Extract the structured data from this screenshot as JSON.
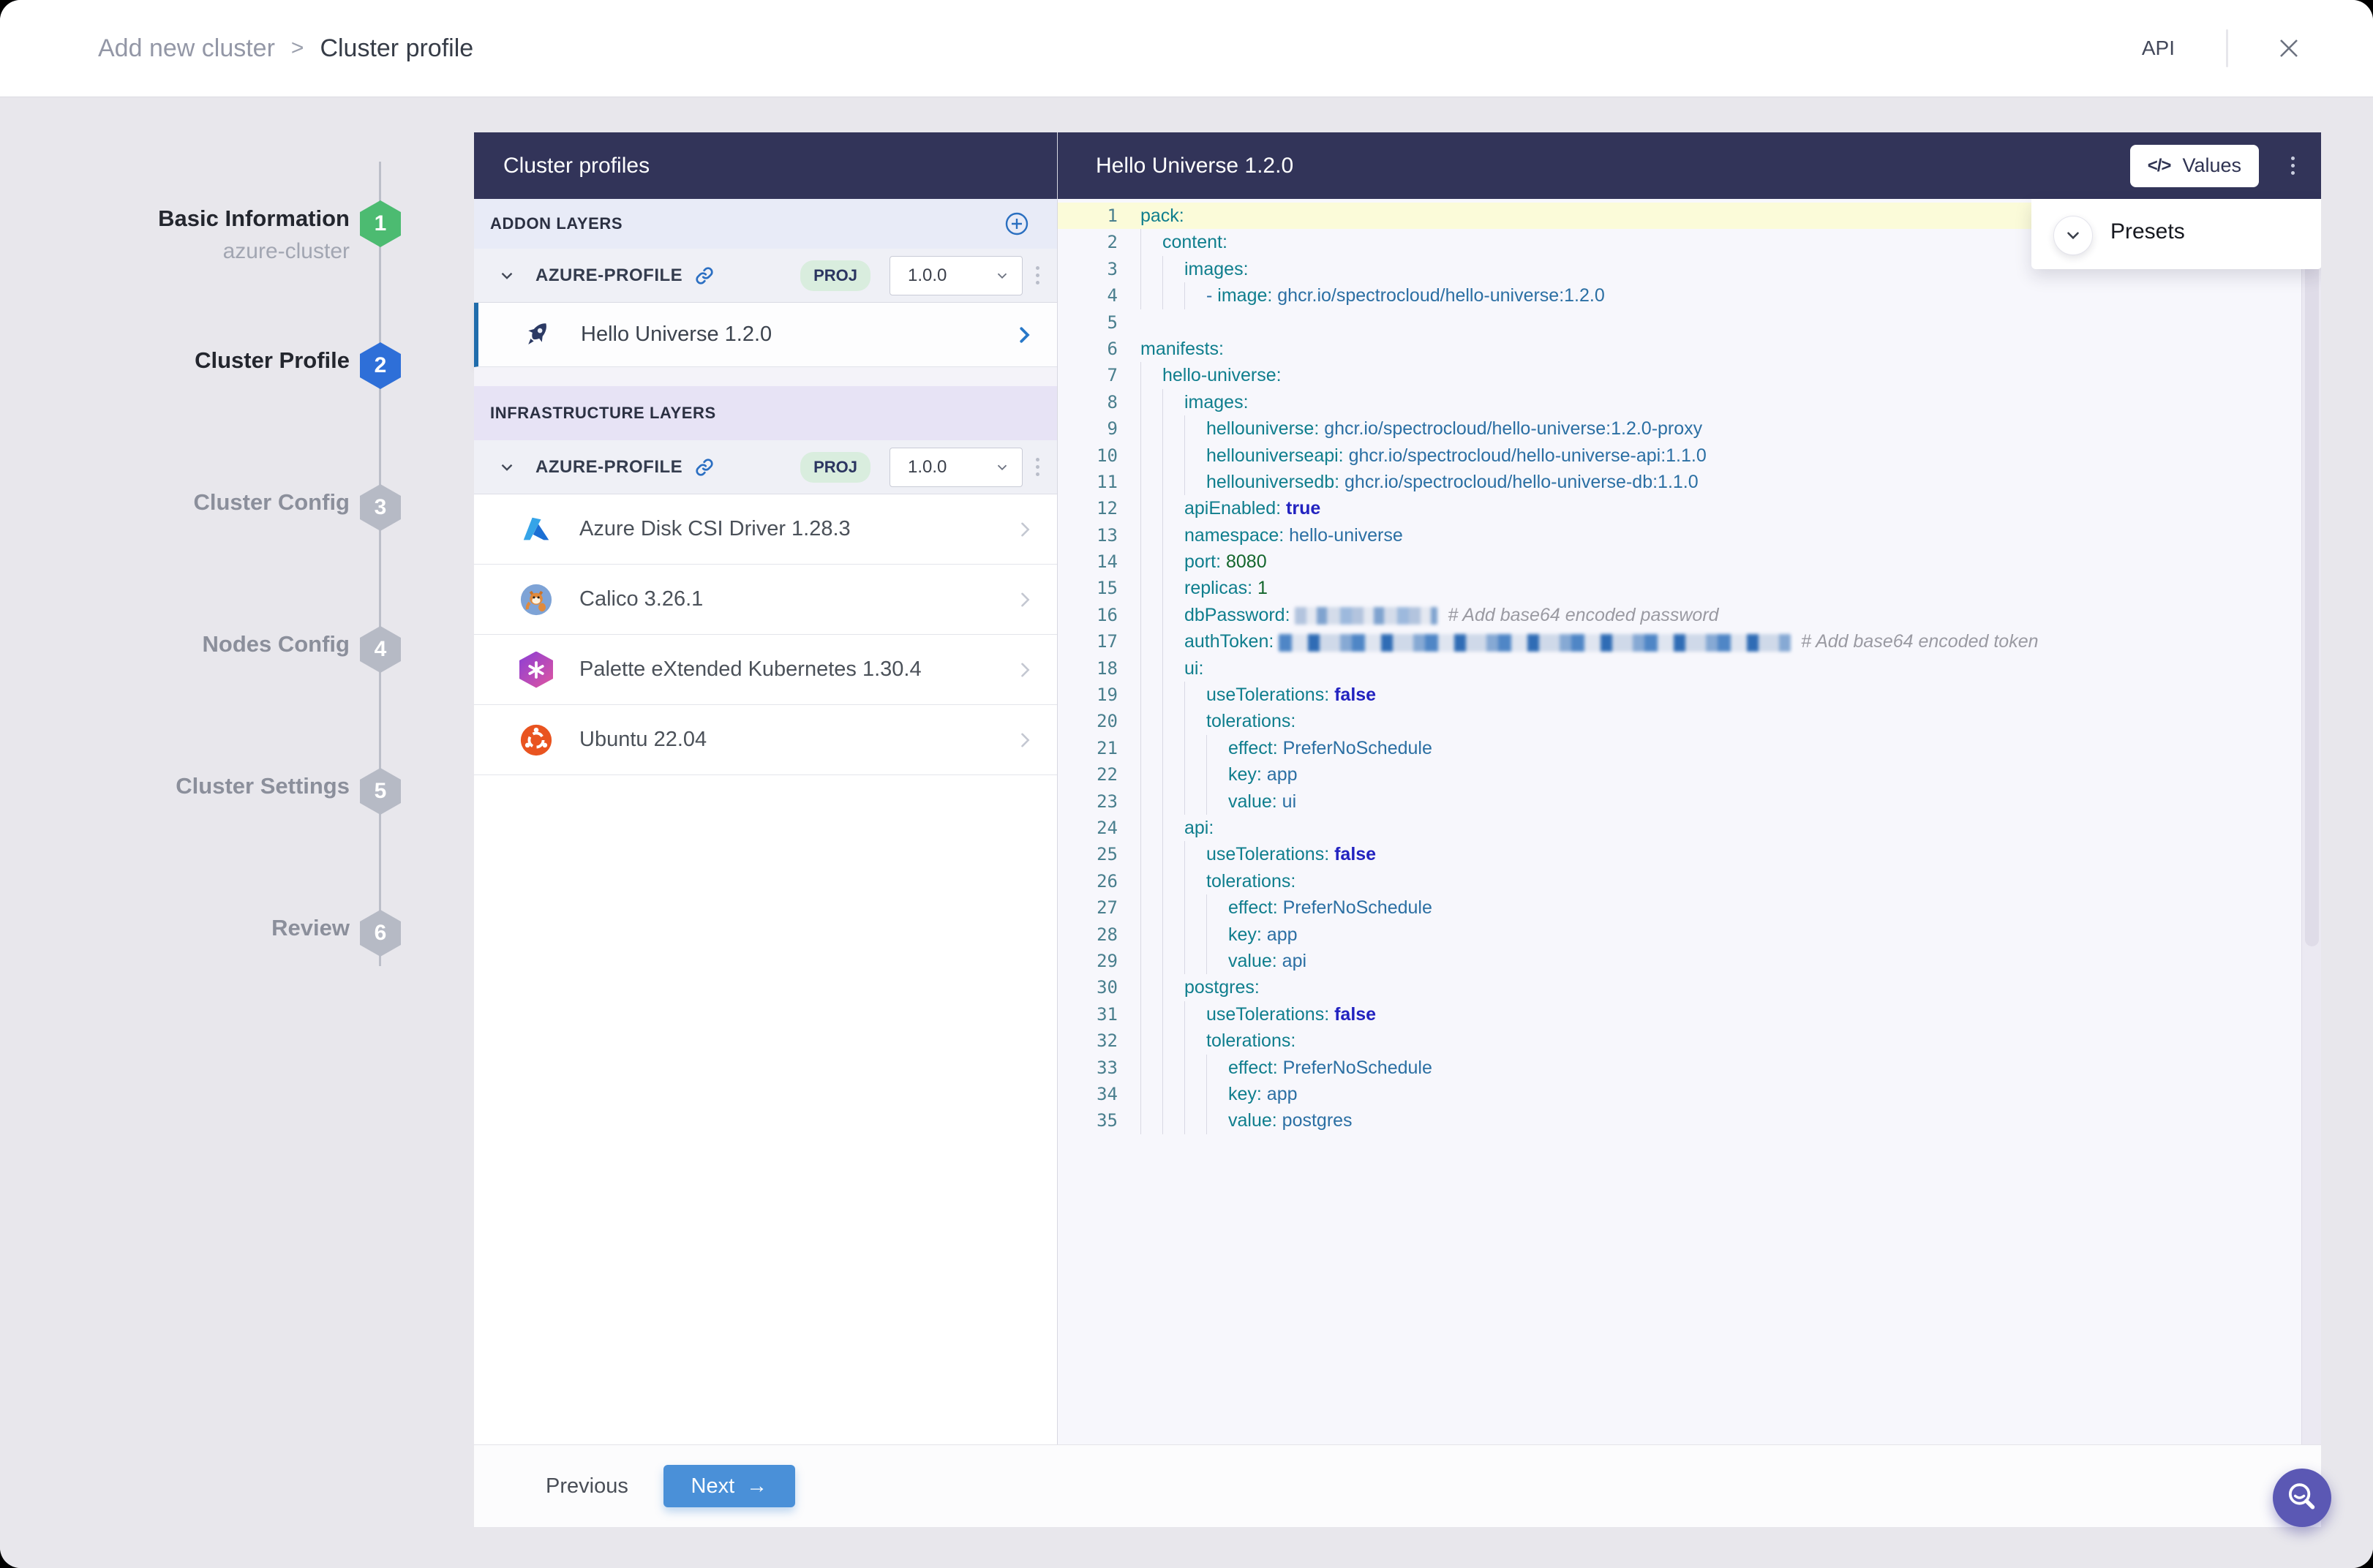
{
  "header": {
    "breadcrumb_parent": "Add new cluster",
    "breadcrumb_separator": ">",
    "breadcrumb_current": "Cluster profile",
    "api_label": "API"
  },
  "stepper": {
    "steps": [
      {
        "number": "1",
        "label": "Basic Information",
        "sub": "azure-cluster",
        "state": "done"
      },
      {
        "number": "2",
        "label": "Cluster Profile",
        "state": "active"
      },
      {
        "number": "3",
        "label": "Cluster Config",
        "state": "todo"
      },
      {
        "number": "4",
        "label": "Nodes Config",
        "state": "todo"
      },
      {
        "number": "5",
        "label": "Cluster Settings",
        "state": "todo"
      },
      {
        "number": "6",
        "label": "Review",
        "state": "todo"
      }
    ]
  },
  "profiles": {
    "title": "Cluster profiles",
    "addon_section_label": "ADDON LAYERS",
    "infra_section_label": "INFRASTRUCTURE LAYERS",
    "addon_profile": {
      "name": "AZURE-PROFILE",
      "scope": "PROJ",
      "version": "1.0.0"
    },
    "infra_profile": {
      "name": "AZURE-PROFILE",
      "scope": "PROJ",
      "version": "1.0.0"
    },
    "addon_layer": {
      "name": "Hello Universe 1.2.0",
      "icon": "rocket-icon"
    },
    "infra_items": [
      {
        "name": "Azure Disk CSI Driver 1.28.3",
        "icon": "azure-icon"
      },
      {
        "name": "Calico 3.26.1",
        "icon": "calico-icon"
      },
      {
        "name": "Palette eXtended Kubernetes 1.30.4",
        "icon": "palette-kubernetes-icon"
      },
      {
        "name": "Ubuntu 22.04",
        "icon": "ubuntu-icon"
      }
    ]
  },
  "editor": {
    "title": "Hello Universe 1.2.0",
    "values_icon": "</>",
    "values_label": "Values",
    "presets_label": "Presets",
    "lines": [
      {
        "n": 1,
        "indent": 0,
        "hl": true,
        "seg": [
          [
            "key",
            "pack:"
          ]
        ]
      },
      {
        "n": 2,
        "indent": 1,
        "seg": [
          [
            "key",
            "content:"
          ]
        ]
      },
      {
        "n": 3,
        "indent": 2,
        "seg": [
          [
            "key",
            "images:"
          ]
        ]
      },
      {
        "n": 4,
        "indent": 3,
        "seg": [
          [
            "dash",
            "- "
          ],
          [
            "key",
            "image:"
          ],
          [
            "val",
            " ghcr.io/spectrocloud/hello-universe:1.2.0"
          ]
        ]
      },
      {
        "n": 5,
        "indent": 0,
        "seg": []
      },
      {
        "n": 6,
        "indent": 0,
        "seg": [
          [
            "key",
            "manifests:"
          ]
        ]
      },
      {
        "n": 7,
        "indent": 1,
        "seg": [
          [
            "key",
            "hello-universe:"
          ]
        ]
      },
      {
        "n": 8,
        "indent": 2,
        "seg": [
          [
            "key",
            "images:"
          ]
        ]
      },
      {
        "n": 9,
        "indent": 3,
        "seg": [
          [
            "key",
            "hellouniverse:"
          ],
          [
            "val",
            " ghcr.io/spectrocloud/hello-universe:1.2.0-proxy"
          ]
        ]
      },
      {
        "n": 10,
        "indent": 3,
        "seg": [
          [
            "key",
            "hellouniverseapi:"
          ],
          [
            "val",
            " ghcr.io/spectrocloud/hello-universe-api:1.1.0"
          ]
        ]
      },
      {
        "n": 11,
        "indent": 3,
        "seg": [
          [
            "key",
            "hellouniversedb:"
          ],
          [
            "val",
            " ghcr.io/spectrocloud/hello-universe-db:1.1.0"
          ]
        ]
      },
      {
        "n": 12,
        "indent": 2,
        "seg": [
          [
            "key",
            "apiEnabled:"
          ],
          [
            "bool",
            " true"
          ]
        ]
      },
      {
        "n": 13,
        "indent": 2,
        "seg": [
          [
            "key",
            "namespace:"
          ],
          [
            "val",
            " hello-universe"
          ]
        ]
      },
      {
        "n": 14,
        "indent": 2,
        "seg": [
          [
            "key",
            "port:"
          ],
          [
            "num",
            " 8080"
          ]
        ]
      },
      {
        "n": 15,
        "indent": 2,
        "seg": [
          [
            "key",
            "replicas:"
          ],
          [
            "num",
            " 1"
          ]
        ]
      },
      {
        "n": 16,
        "indent": 2,
        "seg": [
          [
            "key",
            "dbPassword:"
          ],
          [
            "val",
            " "
          ],
          [
            "blur-sm",
            ""
          ],
          [
            "comment",
            "  # Add base64 encoded password"
          ]
        ]
      },
      {
        "n": 17,
        "indent": 2,
        "seg": [
          [
            "key",
            "authToken:"
          ],
          [
            "val",
            " "
          ],
          [
            "blur-lg",
            ""
          ],
          [
            "comment",
            "  # Add base64 encoded token"
          ]
        ]
      },
      {
        "n": 18,
        "indent": 2,
        "seg": [
          [
            "key",
            "ui:"
          ]
        ]
      },
      {
        "n": 19,
        "indent": 3,
        "seg": [
          [
            "key",
            "useTolerations:"
          ],
          [
            "bool",
            " false"
          ]
        ]
      },
      {
        "n": 20,
        "indent": 3,
        "seg": [
          [
            "key",
            "tolerations:"
          ]
        ]
      },
      {
        "n": 21,
        "indent": 4,
        "seg": [
          [
            "key",
            "effect:"
          ],
          [
            "val",
            " PreferNoSchedule"
          ]
        ]
      },
      {
        "n": 22,
        "indent": 4,
        "seg": [
          [
            "key",
            "key:"
          ],
          [
            "val",
            " app"
          ]
        ]
      },
      {
        "n": 23,
        "indent": 4,
        "seg": [
          [
            "key",
            "value:"
          ],
          [
            "val",
            " ui"
          ]
        ]
      },
      {
        "n": 24,
        "indent": 2,
        "seg": [
          [
            "key",
            "api:"
          ]
        ]
      },
      {
        "n": 25,
        "indent": 3,
        "seg": [
          [
            "key",
            "useTolerations:"
          ],
          [
            "bool",
            " false"
          ]
        ]
      },
      {
        "n": 26,
        "indent": 3,
        "seg": [
          [
            "key",
            "tolerations:"
          ]
        ]
      },
      {
        "n": 27,
        "indent": 4,
        "seg": [
          [
            "key",
            "effect:"
          ],
          [
            "val",
            " PreferNoSchedule"
          ]
        ]
      },
      {
        "n": 28,
        "indent": 4,
        "seg": [
          [
            "key",
            "key:"
          ],
          [
            "val",
            " app"
          ]
        ]
      },
      {
        "n": 29,
        "indent": 4,
        "seg": [
          [
            "key",
            "value:"
          ],
          [
            "val",
            " api"
          ]
        ]
      },
      {
        "n": 30,
        "indent": 2,
        "seg": [
          [
            "key",
            "postgres:"
          ]
        ]
      },
      {
        "n": 31,
        "indent": 3,
        "seg": [
          [
            "key",
            "useTolerations:"
          ],
          [
            "bool",
            " false"
          ]
        ]
      },
      {
        "n": 32,
        "indent": 3,
        "seg": [
          [
            "key",
            "tolerations:"
          ]
        ]
      },
      {
        "n": 33,
        "indent": 4,
        "seg": [
          [
            "key",
            "effect:"
          ],
          [
            "val",
            " PreferNoSchedule"
          ]
        ]
      },
      {
        "n": 34,
        "indent": 4,
        "seg": [
          [
            "key",
            "key:"
          ],
          [
            "val",
            " app"
          ]
        ]
      },
      {
        "n": 35,
        "indent": 4,
        "seg": [
          [
            "key",
            "value:"
          ],
          [
            "val",
            " postgres"
          ]
        ]
      }
    ]
  },
  "footer": {
    "previous_label": "Previous",
    "next_label": "Next",
    "next_arrow": "→"
  },
  "colors": {
    "panel_header_navy": "#323459",
    "step_done_green": "#4cbb71",
    "step_active_blue": "#2e6fd8",
    "step_todo_gray": "#b6bac5",
    "next_button_blue": "#4a90d8",
    "selected_layer_border": "#1f6cab",
    "scope_pill_green": "#d9edde",
    "code_key_teal": "#0f7e8d",
    "code_value_blue": "#2b6fa3",
    "code_bool_indigo": "#2222c0",
    "code_number_green": "#13662c",
    "code_comment_gray": "#9a9aa2",
    "line_highlight_yellow": "#fbfbd9",
    "fab_purple": "#5b58b4"
  }
}
